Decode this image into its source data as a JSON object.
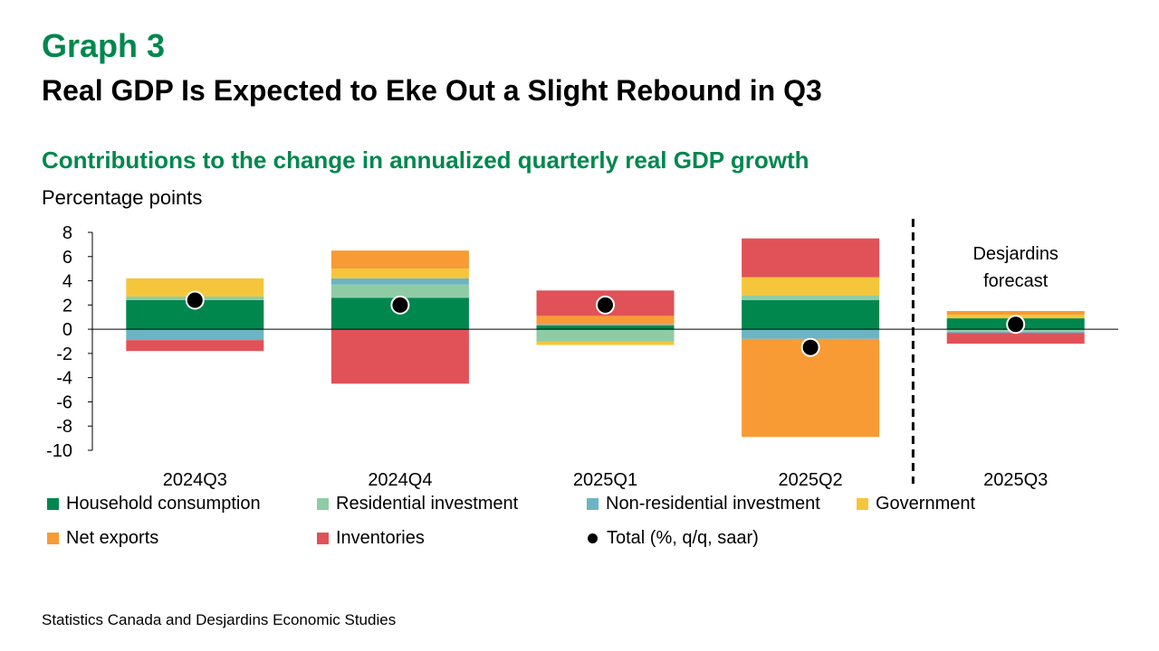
{
  "header": {
    "graph_label": "Graph 3",
    "title": "Real GDP Is Expected to Eke Out a Slight Rebound in Q3",
    "subtitle": "Contributions to the change in annualized quarterly real GDP growth",
    "units": "Percentage points"
  },
  "chart_data": {
    "type": "bar",
    "stacked": true,
    "categories": [
      "2024Q3",
      "2024Q4",
      "2025Q1",
      "2025Q2",
      "2025Q3"
    ],
    "ylim": [
      -10,
      8
    ],
    "yticks": [
      8,
      6,
      4,
      2,
      0,
      -2,
      -4,
      -6,
      -8,
      -10
    ],
    "series": [
      {
        "name": "Household consumption",
        "color": "#00874E",
        "values": [
          2.4,
          2.6,
          0.3,
          2.4,
          0.9
        ]
      },
      {
        "name": "Residential investment",
        "color": "#8FCCA6",
        "values": [
          0.3,
          1.1,
          -1.0,
          0.4,
          -0.2
        ]
      },
      {
        "name": "Non-residential investment",
        "color": "#6CB4C4",
        "values": [
          -0.9,
          0.5,
          0.1,
          -0.8,
          -0.1
        ]
      },
      {
        "name": "Government",
        "color": "#F5C63B",
        "values": [
          1.5,
          0.8,
          -0.3,
          1.5,
          0.3
        ]
      },
      {
        "name": "Net exports",
        "color": "#F89B34",
        "values": [
          0.0,
          1.5,
          0.7,
          -8.1,
          0.3
        ]
      },
      {
        "name": "Inventories",
        "color": "#E05257",
        "values": [
          -0.9,
          -4.5,
          2.1,
          3.2,
          -0.9
        ]
      }
    ],
    "total": {
      "name": "Total (%, q/q, saar)",
      "color": "#000000",
      "values": [
        2.4,
        2.0,
        2.0,
        -1.5,
        0.4
      ]
    },
    "forecast_start_index": 4,
    "annotation": "Desjardins forecast"
  },
  "source": "Statistics Canada and Desjardins Economic Studies"
}
